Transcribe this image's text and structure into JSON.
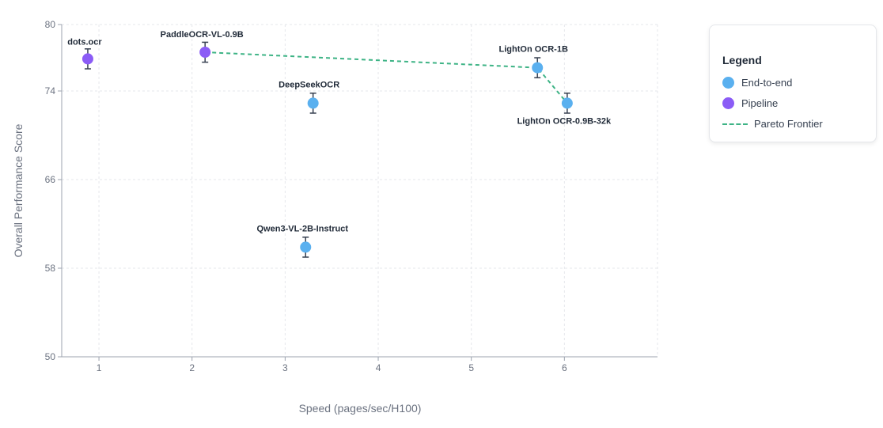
{
  "chart_data": {
    "type": "scatter",
    "xlabel": "Speed (pages/sec/H100)",
    "ylabel": "Overall Performance Score",
    "xlim": [
      0.6,
      7.0
    ],
    "ylim": [
      50,
      80
    ],
    "xticks": [
      1,
      2,
      3,
      4,
      5,
      6
    ],
    "yticks": [
      50,
      58,
      66,
      74,
      80
    ],
    "grid": true,
    "legend_position": "top-right",
    "legend_title": "Legend",
    "series": [
      {
        "name": "End-to-end",
        "color": "#5ab0ef"
      },
      {
        "name": "Pipeline",
        "color": "#8b5cf6"
      },
      {
        "name": "Pareto Frontier",
        "color": "#3db385",
        "style": "dashed"
      }
    ],
    "points": [
      {
        "label": "dots.ocr",
        "x": 0.88,
        "y": 76.9,
        "err": 0.9,
        "series": "Pipeline"
      },
      {
        "label": "PaddleOCR-VL-0.9B",
        "x": 2.14,
        "y": 77.5,
        "err": 0.9,
        "series": "Pipeline"
      },
      {
        "label": "DeepSeekOCR",
        "x": 3.3,
        "y": 72.9,
        "err": 0.9,
        "series": "End-to-end"
      },
      {
        "label": "Qwen3-VL-2B-Instruct",
        "x": 3.22,
        "y": 59.9,
        "err": 0.9,
        "series": "End-to-end"
      },
      {
        "label": "LightOn OCR-1B",
        "x": 5.71,
        "y": 76.1,
        "err": 0.9,
        "series": "End-to-end"
      },
      {
        "label": "LightOn OCR-0.9B-32k",
        "x": 6.03,
        "y": 72.9,
        "err": 0.9,
        "series": "End-to-end"
      }
    ],
    "pareto_frontier": [
      {
        "x": 2.14,
        "y": 77.5
      },
      {
        "x": 5.71,
        "y": 76.1
      },
      {
        "x": 6.03,
        "y": 72.9
      }
    ]
  }
}
